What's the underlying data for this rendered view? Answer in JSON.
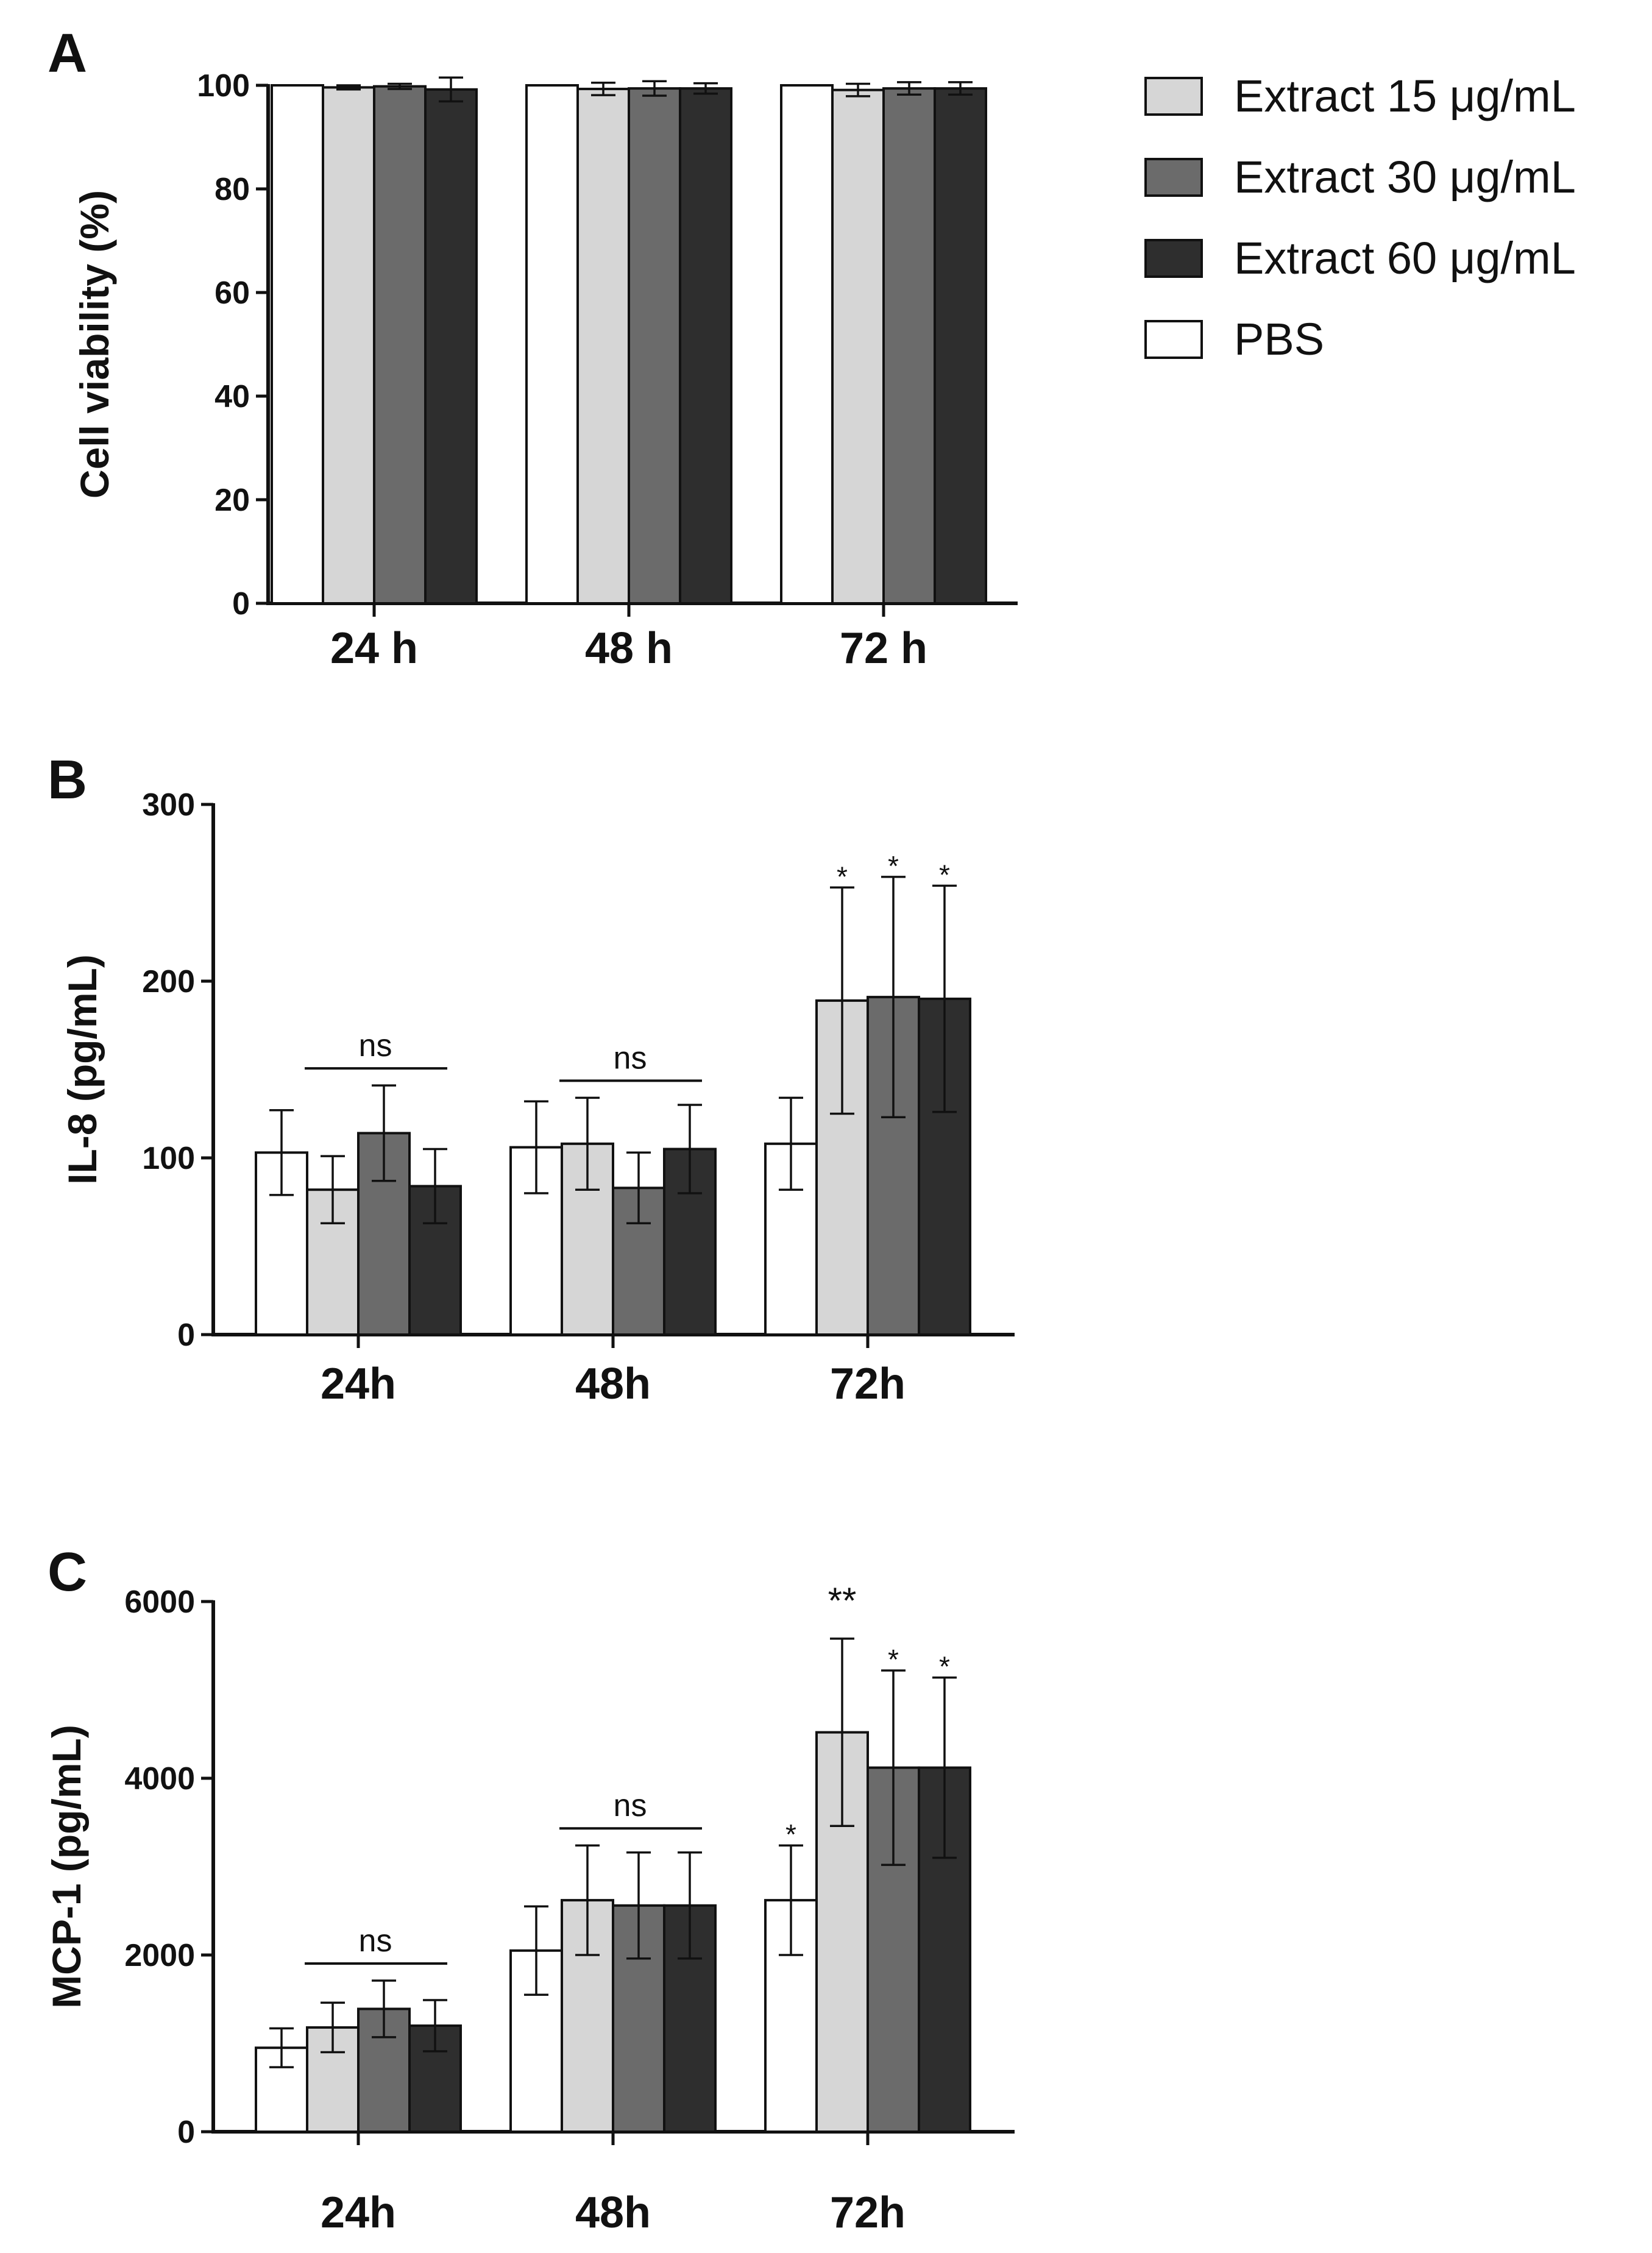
{
  "legend": {
    "items": [
      {
        "label": "Extract 15 μg/mL",
        "color": "#d6d6d6"
      },
      {
        "label": "Extract 30 μg/mL",
        "color": "#6b6b6b"
      },
      {
        "label": "Extract 60 μg/mL",
        "color": "#2e2e2e"
      },
      {
        "label": "PBS",
        "color": "#ffffff"
      }
    ]
  },
  "chart_data": [
    {
      "panel": "A",
      "type": "bar",
      "title": "",
      "ylabel": "Cell viability (%)",
      "xlabel": "",
      "ylim": [
        0,
        100
      ],
      "yticks": [
        0,
        20,
        40,
        60,
        80,
        100
      ],
      "categories": [
        "24 h",
        "48 h",
        "72 h"
      ],
      "series": [
        {
          "name": "PBS",
          "color": "#ffffff",
          "values": [
            100,
            100,
            100
          ],
          "errors": [
            0,
            0,
            0
          ]
        },
        {
          "name": "Extract 15 μg/mL",
          "color": "#d6d6d6",
          "values": [
            99.6,
            99.3,
            99.1
          ],
          "errors": [
            0.4,
            1.2,
            1.2
          ]
        },
        {
          "name": "Extract 30 μg/mL",
          "color": "#6b6b6b",
          "values": [
            99.8,
            99.4,
            99.4
          ],
          "errors": [
            0.5,
            1.4,
            1.2
          ]
        },
        {
          "name": "Extract 60 μg/mL",
          "color": "#2e2e2e",
          "values": [
            99.2,
            99.4,
            99.4
          ],
          "errors": [
            2.3,
            1.0,
            1.2
          ]
        }
      ],
      "annotations": []
    },
    {
      "panel": "B",
      "type": "bar",
      "title": "",
      "ylabel": "IL-8 (pg/mL)",
      "xlabel": "",
      "ylim": [
        0,
        300
      ],
      "yticks": [
        0,
        100,
        200,
        300
      ],
      "categories": [
        "24h",
        "48h",
        "72h"
      ],
      "series": [
        {
          "name": "PBS",
          "color": "#ffffff",
          "values": [
            103,
            106,
            108
          ],
          "errors": [
            24,
            26,
            26
          ]
        },
        {
          "name": "Extract 15 μg/mL",
          "color": "#d6d6d6",
          "values": [
            82,
            108,
            189
          ],
          "errors": [
            19,
            26,
            64
          ]
        },
        {
          "name": "Extract 30 μg/mL",
          "color": "#6b6b6b",
          "values": [
            114,
            83,
            191
          ],
          "errors": [
            27,
            20,
            68
          ]
        },
        {
          "name": "Extract 60 μg/mL",
          "color": "#2e2e2e",
          "values": [
            84,
            105,
            190
          ],
          "errors": [
            21,
            25,
            64
          ]
        }
      ],
      "annotations": [
        {
          "kind": "bracket",
          "text": "ns",
          "category": 0
        },
        {
          "kind": "bracket",
          "text": "ns",
          "category": 1
        },
        {
          "kind": "star",
          "text": "*",
          "category": 2,
          "series": 1
        },
        {
          "kind": "star",
          "text": "*",
          "category": 2,
          "series": 2
        },
        {
          "kind": "star",
          "text": "*",
          "category": 2,
          "series": 3
        }
      ]
    },
    {
      "panel": "C",
      "type": "bar",
      "title": "",
      "ylabel": "MCP-1 (pg/mL)",
      "xlabel": "",
      "ylim": [
        0,
        6000
      ],
      "yticks": [
        0,
        2000,
        4000,
        6000
      ],
      "categories": [
        "24h",
        "48h",
        "72h"
      ],
      "series": [
        {
          "name": "PBS",
          "color": "#ffffff",
          "values": [
            950,
            2050,
            2620
          ],
          "errors": [
            220,
            500,
            620
          ]
        },
        {
          "name": "Extract 15 μg/mL",
          "color": "#d6d6d6",
          "values": [
            1180,
            2620,
            4520
          ],
          "errors": [
            280,
            620,
            1060
          ]
        },
        {
          "name": "Extract 30 μg/mL",
          "color": "#6b6b6b",
          "values": [
            1390,
            2560,
            4120
          ],
          "errors": [
            320,
            600,
            1100
          ]
        },
        {
          "name": "Extract 60 μg/mL",
          "color": "#2e2e2e",
          "values": [
            1200,
            2560,
            4120
          ],
          "errors": [
            290,
            600,
            1020
          ]
        }
      ],
      "annotations": [
        {
          "kind": "bracket",
          "text": "ns",
          "category": 0
        },
        {
          "kind": "bracket",
          "text": "ns",
          "category": 1
        },
        {
          "kind": "star",
          "text": "*",
          "category": 2,
          "series": 0
        },
        {
          "kind": "star",
          "text": "**",
          "category": 2,
          "series": 1
        },
        {
          "kind": "star",
          "text": "*",
          "category": 2,
          "series": 2
        },
        {
          "kind": "star",
          "text": "*",
          "category": 2,
          "series": 3
        }
      ]
    }
  ]
}
